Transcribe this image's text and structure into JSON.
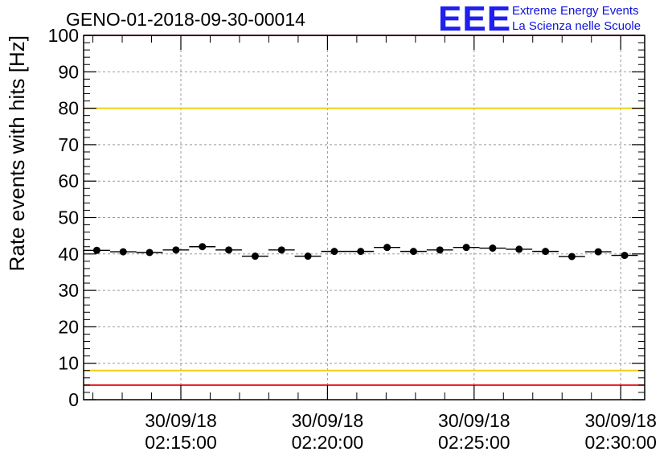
{
  "logo": {
    "mark": "EEE",
    "line1": "Extreme Energy Events",
    "line2": "La Scienza nelle Scuole",
    "color": "#1f1ff0"
  },
  "chart_data": {
    "type": "scatter",
    "title": "GENO-01-2018-09-30-00014",
    "xlabel": "",
    "ylabel": "Rate events with hits [Hz]",
    "ylim": [
      0,
      100
    ],
    "xlim": [
      "30/09/18 02:11:41",
      "30/09/18 02:30:49"
    ],
    "y_ticks": [
      "0",
      "10",
      "20",
      "30",
      "40",
      "50",
      "60",
      "70",
      "80",
      "90",
      "100"
    ],
    "x_ticks": [
      {
        "date": "30/09/18",
        "time": "02:15:00"
      },
      {
        "date": "30/09/18",
        "time": "02:20:00"
      },
      {
        "date": "30/09/18",
        "time": "02:25:00"
      },
      {
        "date": "30/09/18",
        "time": "02:30:00"
      }
    ],
    "grid": true,
    "series": [
      {
        "x": [
          "02:12:08",
          "02:13:02",
          "02:13:56",
          "02:14:50",
          "02:15:44",
          "02:16:38",
          "02:17:32",
          "02:18:26",
          "02:19:20",
          "02:20:14",
          "02:21:08",
          "02:22:02",
          "02:22:56",
          "02:23:50",
          "02:24:44",
          "02:25:38",
          "02:26:32",
          "02:27:26",
          "02:28:20",
          "02:29:14",
          "02:30:08"
        ],
        "values": [
          41.0,
          40.6,
          40.4,
          41.1,
          42.0,
          41.1,
          39.4,
          41.1,
          39.4,
          40.7,
          40.7,
          41.8,
          40.7,
          41.1,
          41.8,
          41.6,
          41.3,
          40.7,
          39.3,
          40.6,
          39.6
        ],
        "color": "#000000"
      }
    ],
    "reference_lines": [
      {
        "value": 100,
        "color": "#e8141c"
      },
      {
        "value": 80,
        "color": "#f2cf12"
      },
      {
        "value": 8,
        "color": "#f2cf12"
      },
      {
        "value": 4,
        "color": "#e8141c"
      }
    ]
  }
}
